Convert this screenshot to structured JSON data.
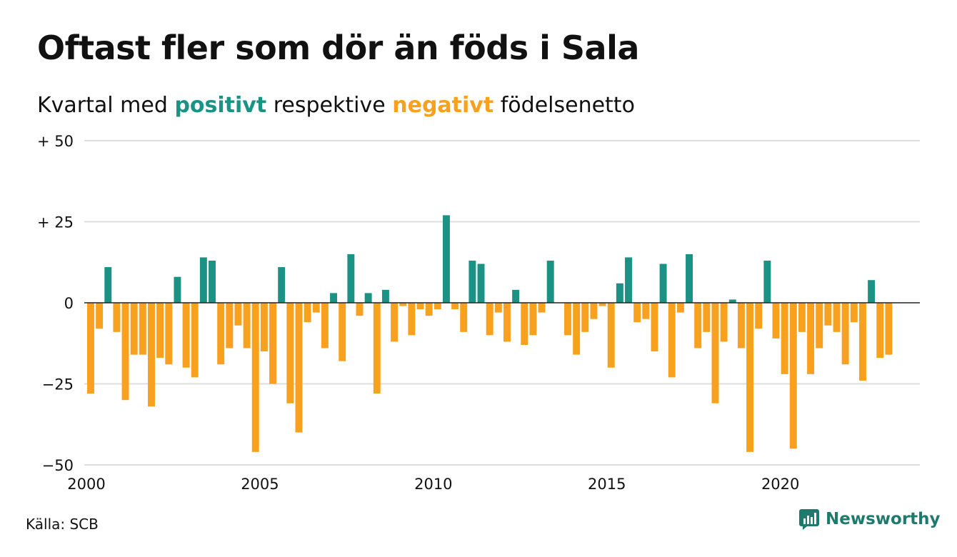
{
  "title": "Oftast fler som dör än föds i Sala",
  "subtitle": {
    "prefix": "Kvartal med",
    "positive_word": "positivt",
    "middle": "respektive",
    "negative_word": "negativt",
    "suffix": "födelsenetto"
  },
  "source": "Källa: SCB",
  "brand": "Newsworthy",
  "colors": {
    "positive": "#1a9385",
    "negative": "#f8a11e",
    "grid": "#dddddd",
    "zero_line": "#222222",
    "brand": "#1f7a6e"
  },
  "icons": [
    "newsworthy-logo-icon"
  ],
  "chart_data": {
    "type": "bar",
    "x_start_year": 2000,
    "x_end_year": 2023,
    "frequency": "quarterly",
    "ylim": [
      -50,
      50
    ],
    "y_ticks": [
      50,
      25,
      0,
      -25,
      -50
    ],
    "y_tick_labels": [
      "+ 50",
      "+ 25",
      "0",
      "−25",
      "−50"
    ],
    "x_ticks": [
      2000,
      2005,
      2010,
      2015,
      2020
    ],
    "x_tick_labels": [
      "2000",
      "2005",
      "2010",
      "2015",
      "2020"
    ],
    "grid": true,
    "legend": "none",
    "values": [
      -28,
      -8,
      11,
      -9,
      -30,
      -16,
      -16,
      -32,
      -17,
      -19,
      8,
      -20,
      -23,
      14,
      13,
      -19,
      -14,
      -7,
      -14,
      -46,
      -15,
      -25,
      11,
      -31,
      -40,
      -6,
      -3,
      -14,
      3,
      -18,
      15,
      -4,
      3,
      -28,
      4,
      -12,
      -1,
      -10,
      -2,
      -4,
      -2,
      27,
      -2,
      -9,
      13,
      12,
      -10,
      -3,
      -12,
      4,
      -13,
      -10,
      -3,
      13,
      0,
      -10,
      -16,
      -9,
      -5,
      -1,
      -20,
      6,
      14,
      -6,
      -5,
      -15,
      12,
      -23,
      -3,
      15,
      -14,
      -9,
      -31,
      -12,
      1,
      -14,
      -46,
      -8,
      13,
      -11,
      -22,
      -45,
      -9,
      -22,
      -14,
      -7,
      -9,
      -19,
      -6,
      -24,
      7,
      -17,
      -16
    ]
  }
}
